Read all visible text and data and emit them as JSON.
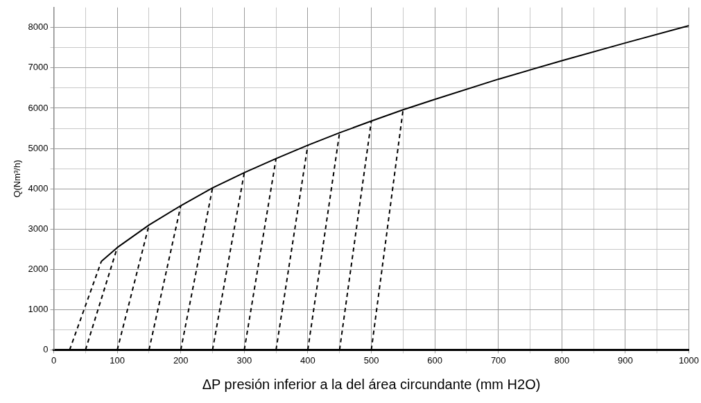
{
  "chart_data": {
    "type": "line",
    "xlabel": "ΔP presión inferior a la del área circundante (mm H2O)",
    "ylabel": "Q(Nm³/h)",
    "xlim": [
      0,
      1000
    ],
    "ylim": [
      0,
      8500
    ],
    "xticks": [
      0,
      {
        "value": 50,
        "label": null
      },
      100,
      {
        "value": 150,
        "label": null
      },
      200,
      {
        "value": 250,
        "label": null
      },
      300,
      {
        "value": 350,
        "label": null
      },
      400,
      {
        "value": 450,
        "label": null
      },
      500,
      {
        "value": 550,
        "label": null
      },
      600,
      {
        "value": 650,
        "label": null
      },
      700,
      {
        "value": 750,
        "label": null
      },
      800,
      {
        "value": 850,
        "label": null
      },
      900,
      {
        "value": 950,
        "label": null
      },
      1000
    ],
    "yticks": [
      0,
      {
        "value": 500,
        "label": null
      },
      1000,
      {
        "value": 1500,
        "label": null
      },
      2000,
      {
        "value": 2500,
        "label": null
      },
      3000,
      {
        "value": 3500,
        "label": null
      },
      4000,
      {
        "value": 4500,
        "label": null
      },
      5000,
      {
        "value": 5500,
        "label": null
      },
      6000,
      {
        "value": 6500,
        "label": null
      },
      7000,
      {
        "value": 7500,
        "label": null
      },
      8000
    ],
    "grid": true,
    "legend": false,
    "marker": "none",
    "series": [
      {
        "color": "#000000",
        "line_style": "solid",
        "x": [
          75,
          100,
          150,
          200,
          250,
          300,
          350,
          400,
          450,
          500,
          550,
          600,
          700,
          800,
          900,
          1000
        ],
        "values": [
          2200,
          2540,
          3100,
          3580,
          4020,
          4400,
          4750,
          5080,
          5390,
          5680,
          5960,
          6220,
          6720,
          7180,
          7620,
          8050
        ]
      },
      {
        "color": "#000000",
        "line_style": "dashed",
        "x": [
          25,
          75
        ],
        "values": [
          0,
          2200
        ]
      },
      {
        "color": "#000000",
        "line_style": "dashed",
        "x": [
          50,
          100
        ],
        "values": [
          0,
          2540
        ]
      },
      {
        "color": "#000000",
        "line_style": "dashed",
        "x": [
          100,
          150
        ],
        "values": [
          0,
          3100
        ]
      },
      {
        "color": "#000000",
        "line_style": "dashed",
        "x": [
          150,
          200
        ],
        "values": [
          0,
          3580
        ]
      },
      {
        "color": "#000000",
        "line_style": "dashed",
        "x": [
          200,
          250
        ],
        "values": [
          0,
          4020
        ]
      },
      {
        "color": "#000000",
        "line_style": "dashed",
        "x": [
          250,
          300
        ],
        "values": [
          0,
          4400
        ]
      },
      {
        "color": "#000000",
        "line_style": "dashed",
        "x": [
          300,
          350
        ],
        "values": [
          0,
          4750
        ]
      },
      {
        "color": "#000000",
        "line_style": "dashed",
        "x": [
          350,
          400
        ],
        "values": [
          0,
          5080
        ]
      },
      {
        "color": "#000000",
        "line_style": "dashed",
        "x": [
          400,
          450
        ],
        "values": [
          0,
          5390
        ]
      },
      {
        "color": "#000000",
        "line_style": "dashed",
        "x": [
          450,
          500
        ],
        "values": [
          0,
          5680
        ]
      },
      {
        "color": "#000000",
        "line_style": "dashed",
        "x": [
          500,
          550
        ],
        "values": [
          0,
          5960
        ]
      }
    ]
  }
}
